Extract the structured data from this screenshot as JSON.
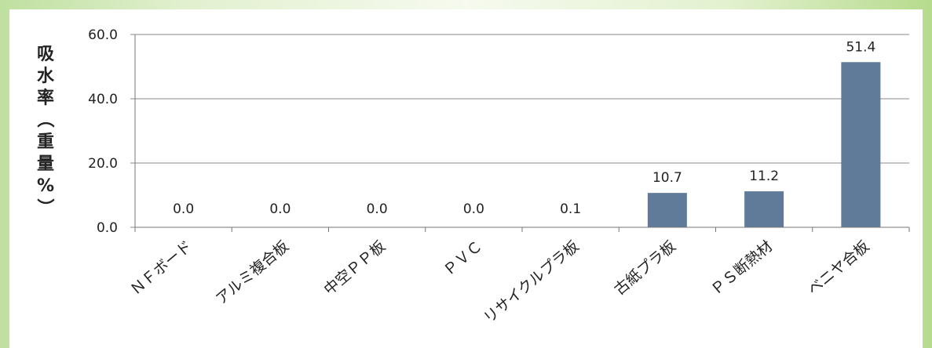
{
  "chart_data": {
    "type": "bar",
    "ylabel": "吸水率（重量%）",
    "ylim": [
      0,
      60
    ],
    "yticks": [
      "0.0",
      "20.0",
      "40.0",
      "60.0"
    ],
    "grid": true,
    "categories": [
      "ＮＦボード",
      "アルミ複合板",
      "中空ＰＰ板",
      "ＰＶＣ",
      "リサイクルプラ板",
      "古紙プラ板",
      "ＰＳ断熱材",
      "ベニヤ合板"
    ],
    "values": [
      0.0,
      0.0,
      0.0,
      0.0,
      0.1,
      10.7,
      11.2,
      51.4
    ],
    "data_labels": [
      "0.0",
      "0.0",
      "0.0",
      "0.0",
      "0.1",
      "10.7",
      "11.2",
      "51.4"
    ],
    "highlight_label_index": 0,
    "colors": {
      "bar": "#607b99",
      "highlight_label": "#e0401c",
      "grid": "#888888"
    }
  }
}
